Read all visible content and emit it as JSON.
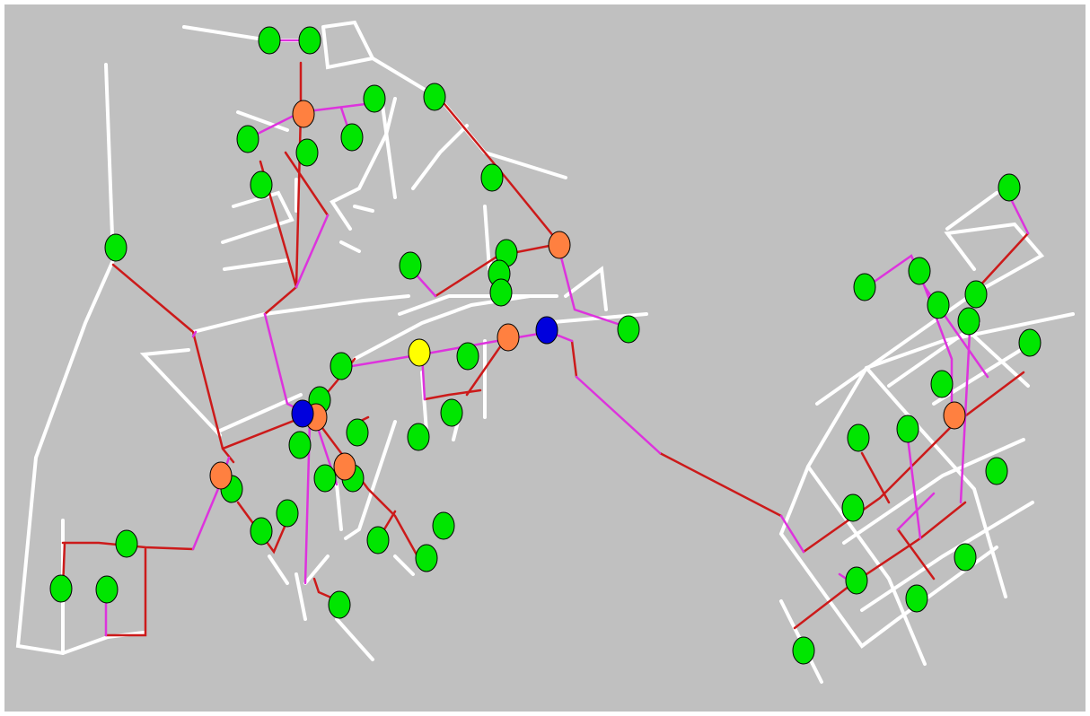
{
  "colors": {
    "background": "#c0c0c0",
    "street": "#ffffff",
    "pipe_red": "#cc1a1a",
    "pipe_magenta": "#dd33dd",
    "node_green": "#00e600",
    "node_orange": "#ff8040",
    "node_blue": "#0000dd",
    "node_yellow": "#ffff00"
  },
  "legend": {
    "node_types": [
      "consumer",
      "junction",
      "source",
      "selected"
    ],
    "line_types": [
      "street",
      "pipe_red",
      "pipe_magenta"
    ]
  }
}
